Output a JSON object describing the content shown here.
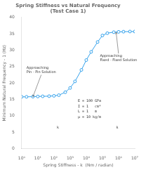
{
  "chart_data": {
    "type": "line",
    "title": "Spring Stiffness vs Natural Frequency\n(Test Case 1)",
    "xlabel": "Spring Stiffness - k  (Nm / radian)",
    "ylabel": "Minimum Natural Frequency - 1 (Hz)",
    "log": "x",
    "x": [
      1,
      2,
      5,
      10,
      20,
      50,
      100,
      200,
      500,
      1000,
      2000,
      5000,
      10000,
      20000,
      50000,
      100000,
      200000,
      500000,
      1000000,
      2000000,
      5000000,
      10000000
    ],
    "values": [
      15.8,
      15.8,
      15.85,
      15.9,
      15.95,
      16.0,
      16.1,
      16.3,
      17.2,
      18.5,
      20.5,
      24.0,
      27.0,
      29.5,
      32.5,
      34.5,
      35.2,
      35.5,
      35.6,
      35.65,
      35.7,
      35.7
    ],
    "marker": "circle",
    "xlim": [
      1,
      10000000
    ],
    "xticks": [
      {
        "value": 1,
        "label": "10⁰"
      },
      {
        "value": 10,
        "label": "10¹"
      },
      {
        "value": 100,
        "label": "10²"
      },
      {
        "value": 1000,
        "label": "10³"
      },
      {
        "value": 10000,
        "label": "10⁴"
      },
      {
        "value": 100000,
        "label": "10⁵"
      },
      {
        "value": 1000000,
        "label": "10⁶"
      },
      {
        "value": 10000000,
        "label": "10⁷"
      }
    ],
    "ylim": [
      0,
      40
    ],
    "yticks": [
      0,
      5,
      10,
      15,
      20,
      25,
      30,
      35,
      40
    ],
    "grid": false,
    "annotations": [
      {
        "text": "Approaching\nPin - Pin Solution",
        "x": 2,
        "y": 24,
        "arrow_to": [
          5,
          15.85
        ]
      },
      {
        "text": "Approaching\nFixed - Fixed Solution",
        "x": 70000,
        "y": 27.5,
        "arrow_to": [
          700000,
          35.5
        ]
      },
      {
        "text": "E = 100 GPa",
        "x": 3000,
        "y": 14.5
      },
      {
        "text": "I = 1   cm⁴",
        "x": 3000,
        "y": 12.9
      },
      {
        "text": "L = 1   m",
        "x": 3000,
        "y": 11.3
      },
      {
        "text": "μ = 10 kg/m",
        "x": 3000,
        "y": 9.7
      },
      {
        "text": "k",
        "x": 150,
        "y": 6.5
      },
      {
        "text": "k",
        "x": 700000,
        "y": 6.5
      }
    ]
  }
}
